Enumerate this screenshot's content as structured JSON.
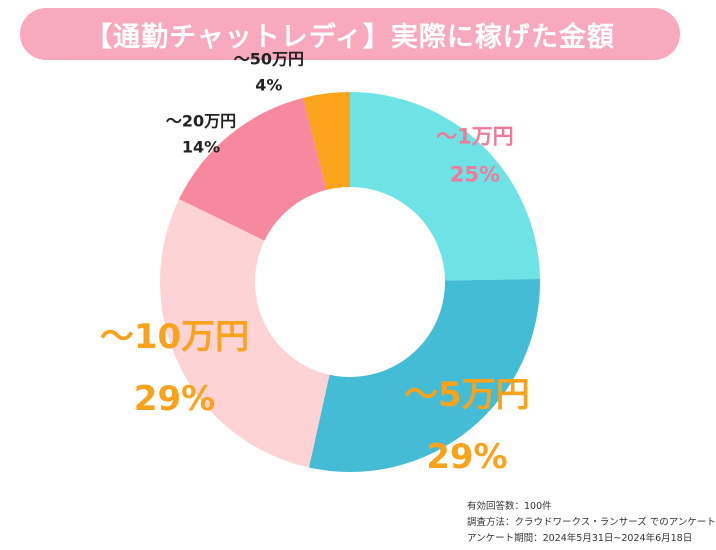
{
  "title": "【通勤チャットレディ】実際に稼げた金額",
  "chart_data": {
    "type": "pie",
    "title": "【通勤チャットレディ】実際に稼げた金額",
    "categories": [
      "～1万円",
      "～5万円",
      "～10万円",
      "～20万円",
      "～50万円"
    ],
    "values": [
      25,
      29,
      29,
      14,
      4
    ],
    "value_labels": [
      "25%",
      "29%",
      "29%",
      "14%",
      "4%"
    ],
    "colors": [
      "#6ee3e6",
      "#44bcd6",
      "#fdd3d6",
      "#f7899f",
      "#fba41b"
    ],
    "label_colors": [
      "#f07a9a",
      "#f9a21c",
      "#f9a21c",
      "#222222",
      "#222222"
    ],
    "legend": "none"
  },
  "footnote": {
    "line1": "有効回答数：100件",
    "line2": "調査方法：クラウドワークス・ランサーズ でのアンケート",
    "line3": "アンケート期間：2024年5月31日~2024年6月18日"
  }
}
